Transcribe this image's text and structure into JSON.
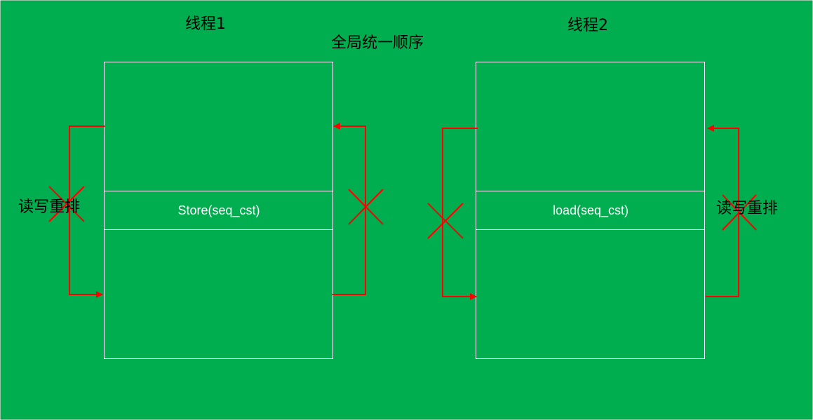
{
  "colors": {
    "background": "#00ad4f",
    "box_border": "#ffffff",
    "arrow": "#ff0000",
    "text": "#000000",
    "box_text": "#ffffff"
  },
  "titles": {
    "thread1": "线程1",
    "thread2": "线程2",
    "global_order": "全局统一顺序"
  },
  "threads": [
    {
      "box_label": "Store(seq_cst)"
    },
    {
      "box_label": "load(seq_cst)"
    }
  ],
  "reorder_labels": {
    "left": "读写重排",
    "right": "读写重排"
  }
}
